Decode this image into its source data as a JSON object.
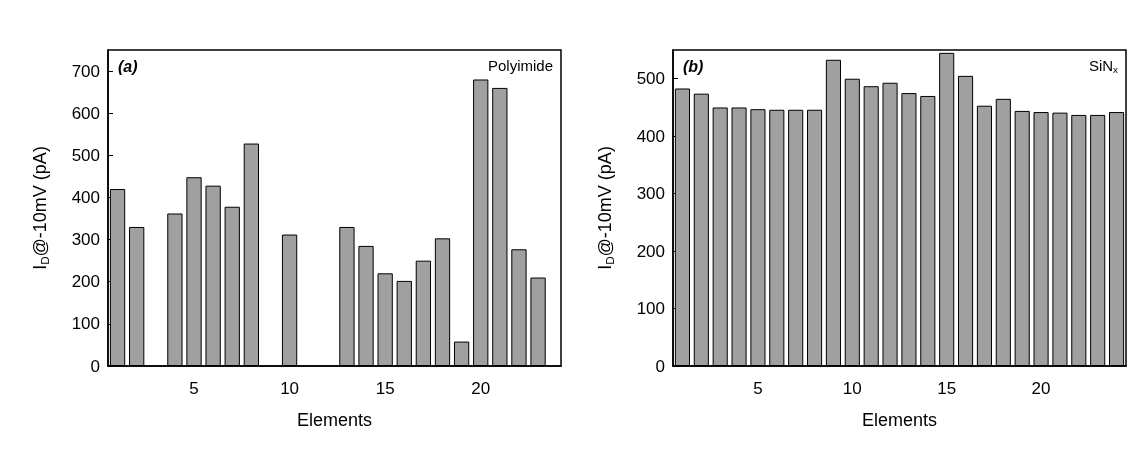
{
  "chart_data": [
    {
      "type": "bar",
      "xlabel": "Elements",
      "ylabel": "I$_{D}$@-10mV (pA)",
      "annotations": [
        "(a)",
        "Polyimide"
      ],
      "x": [
        1,
        2,
        3,
        4,
        5,
        6,
        7,
        8,
        9,
        10,
        11,
        12,
        13,
        14,
        15,
        16,
        17,
        18,
        19,
        20,
        21,
        22,
        23
      ],
      "values": [
        420,
        330,
        null,
        362,
        448,
        428,
        378,
        528,
        null,
        312,
        null,
        null,
        330,
        285,
        220,
        202,
        250,
        303,
        58,
        680,
        660,
        277,
        210
      ],
      "color": "#a0a0a0",
      "xlim": [
        0.5,
        24.2
      ],
      "xticks": [
        5,
        10,
        15,
        20
      ],
      "ylim": [
        0,
        750
      ],
      "yticks": [
        0,
        100,
        200,
        300,
        400,
        500,
        600,
        700
      ]
    },
    {
      "type": "bar",
      "xlabel": "Elements",
      "ylabel": "I$_{D}$@-10mV (pA)",
      "annotations": [
        "(b)",
        "SiN$_{x}$"
      ],
      "x": [
        1,
        2,
        3,
        4,
        5,
        6,
        7,
        8,
        9,
        10,
        11,
        12,
        13,
        14,
        15,
        16,
        17,
        18,
        19,
        20,
        21,
        22,
        23,
        24
      ],
      "values": [
        483,
        474,
        450,
        450,
        447,
        446,
        446,
        446,
        533,
        500,
        487,
        493,
        475,
        470,
        545,
        505,
        453,
        465,
        444,
        442,
        441,
        437,
        437,
        442
      ],
      "color": "#a0a0a0",
      "xlim": [
        0.5,
        24.5
      ],
      "xticks": [
        5,
        10,
        15,
        20
      ],
      "ylim": [
        0,
        550
      ],
      "yticks": [
        0,
        100,
        200,
        300,
        400,
        500
      ]
    }
  ]
}
